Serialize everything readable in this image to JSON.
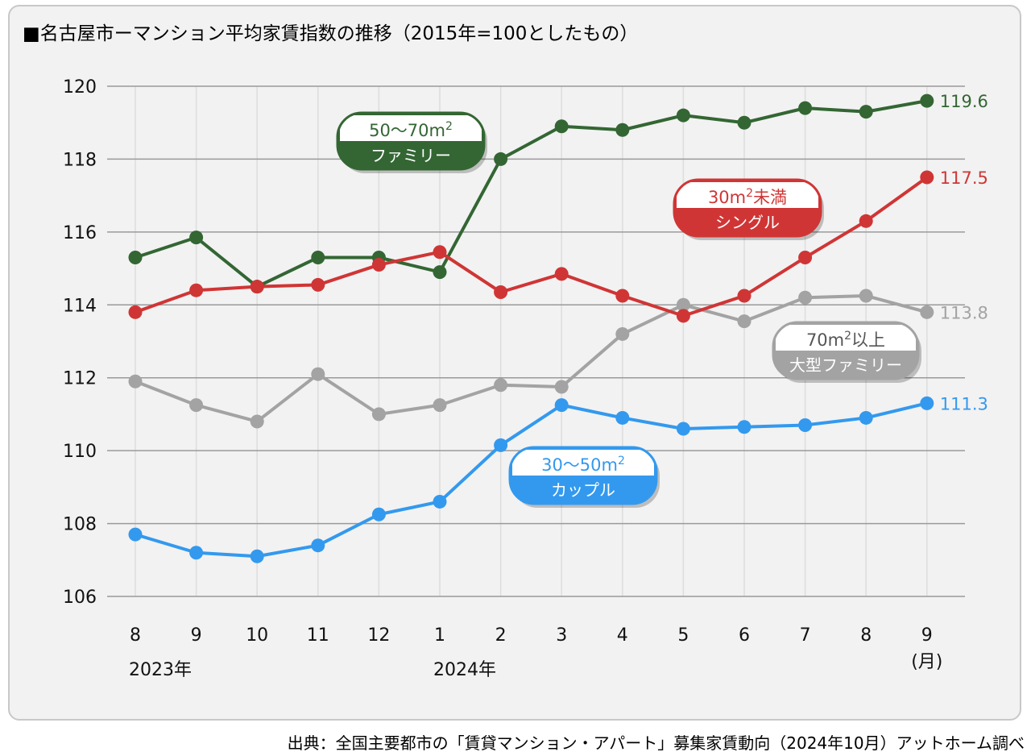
{
  "title": "■名古屋市ーマンション平均家賃指数の推移（2015年=100としたもの）",
  "source": "出典：全国主要都市の「賃貸マンション・アパート」募集家賃動向（2024年10月）アットホーム調べ",
  "chart_data": {
    "type": "line",
    "categories": [
      "8",
      "9",
      "10",
      "11",
      "12",
      "1",
      "2",
      "3",
      "4",
      "5",
      "6",
      "7",
      "8",
      "9"
    ],
    "year_labels": [
      {
        "category_index": 0,
        "text": "2023年"
      },
      {
        "category_index": 5,
        "text": "2024年"
      }
    ],
    "unit_label": "(月)",
    "ylim": [
      106,
      120
    ],
    "yticks": [
      106,
      108,
      110,
      112,
      114,
      116,
      118,
      120
    ],
    "grid": true,
    "series": [
      {
        "key": "family",
        "name": "50〜70m²ファミリー",
        "color": "#336633",
        "values": [
          115.3,
          115.85,
          114.5,
          115.3,
          115.3,
          114.9,
          118.0,
          118.9,
          118.8,
          119.2,
          119.0,
          119.4,
          119.3,
          119.6
        ],
        "end_label": "119.6",
        "pill": {
          "top": "50〜70m²",
          "bottom": "ファミリー",
          "top_color": "#336633"
        }
      },
      {
        "key": "single",
        "name": "30m²未満シングル",
        "color": "#d03535",
        "values": [
          113.8,
          114.4,
          114.5,
          114.55,
          115.1,
          115.45,
          114.35,
          114.85,
          114.25,
          113.7,
          114.25,
          115.3,
          116.3,
          117.5
        ],
        "end_label": "117.5",
        "pill": {
          "top": "30m²未満",
          "bottom": "シングル",
          "top_color": "#d03535"
        }
      },
      {
        "key": "large_family",
        "name": "70m²以上大型ファミリー",
        "color": "#a3a3a3",
        "values": [
          111.9,
          111.25,
          110.8,
          112.1,
          111.0,
          111.25,
          111.8,
          111.75,
          113.2,
          114.0,
          113.55,
          114.2,
          114.25,
          113.8
        ],
        "end_label": "113.8",
        "pill": {
          "top": "70m²以上",
          "bottom": "大型ファミリー",
          "top_color": "#555555"
        }
      },
      {
        "key": "couple",
        "name": "30〜50m²カップル",
        "color": "#3399ee",
        "values": [
          107.7,
          107.2,
          107.1,
          107.4,
          108.25,
          108.6,
          110.15,
          111.25,
          110.9,
          110.6,
          110.65,
          110.7,
          110.9,
          111.3
        ],
        "end_label": "111.3",
        "pill": {
          "top": "30〜50m²",
          "bottom": "カップル",
          "top_color": "#3399ee"
        }
      }
    ]
  }
}
